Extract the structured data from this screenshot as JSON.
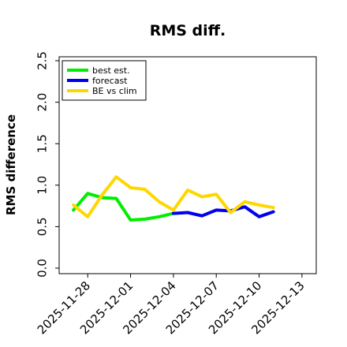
{
  "chart_data": {
    "type": "line",
    "title": "RMS diff.",
    "ylabel": "RMS difference",
    "xlabel": "",
    "ylim": [
      0,
      2.5
    ],
    "yticks": [
      "0.0",
      "0.5",
      "1.0",
      "1.5",
      "2.0",
      "2.5"
    ],
    "xlim": [
      "2025-11-26",
      "2025-12-14"
    ],
    "xticks": [
      "2025-11-28",
      "2025-12-01",
      "2025-12-04",
      "2025-12-07",
      "2025-12-10",
      "2025-12-13"
    ],
    "highlight_tick": "2025-12-04",
    "highlight_tick_color": "#228b22",
    "grid": false,
    "legend_position": "upper left",
    "series": [
      {
        "name": "best est.",
        "color": "#00ee00",
        "x": [
          "2025-11-27",
          "2025-11-28",
          "2025-11-29",
          "2025-11-30",
          "2025-12-01",
          "2025-12-02",
          "2025-12-03",
          "2025-12-04"
        ],
        "y": [
          0.7,
          0.9,
          0.85,
          0.84,
          0.58,
          0.59,
          0.62,
          0.66
        ]
      },
      {
        "name": "forecast",
        "color": "#0000ee",
        "x": [
          "2025-12-04",
          "2025-12-05",
          "2025-12-06",
          "2025-12-07",
          "2025-12-08",
          "2025-12-09",
          "2025-12-10",
          "2025-12-11"
        ],
        "y": [
          0.66,
          0.67,
          0.63,
          0.7,
          0.69,
          0.74,
          0.62,
          0.68
        ]
      },
      {
        "name": "BE vs clim",
        "color": "#ffd700",
        "x": [
          "2025-11-27",
          "2025-11-28",
          "2025-11-29",
          "2025-11-30",
          "2025-12-01",
          "2025-12-02",
          "2025-12-03",
          "2025-12-04",
          "2025-12-05",
          "2025-12-06",
          "2025-12-07",
          "2025-12-08",
          "2025-12-09",
          "2025-12-10",
          "2025-12-11"
        ],
        "y": [
          0.76,
          0.62,
          0.88,
          1.1,
          0.97,
          0.95,
          0.8,
          0.7,
          0.94,
          0.86,
          0.89,
          0.67,
          0.8,
          0.76,
          0.73
        ]
      }
    ]
  }
}
